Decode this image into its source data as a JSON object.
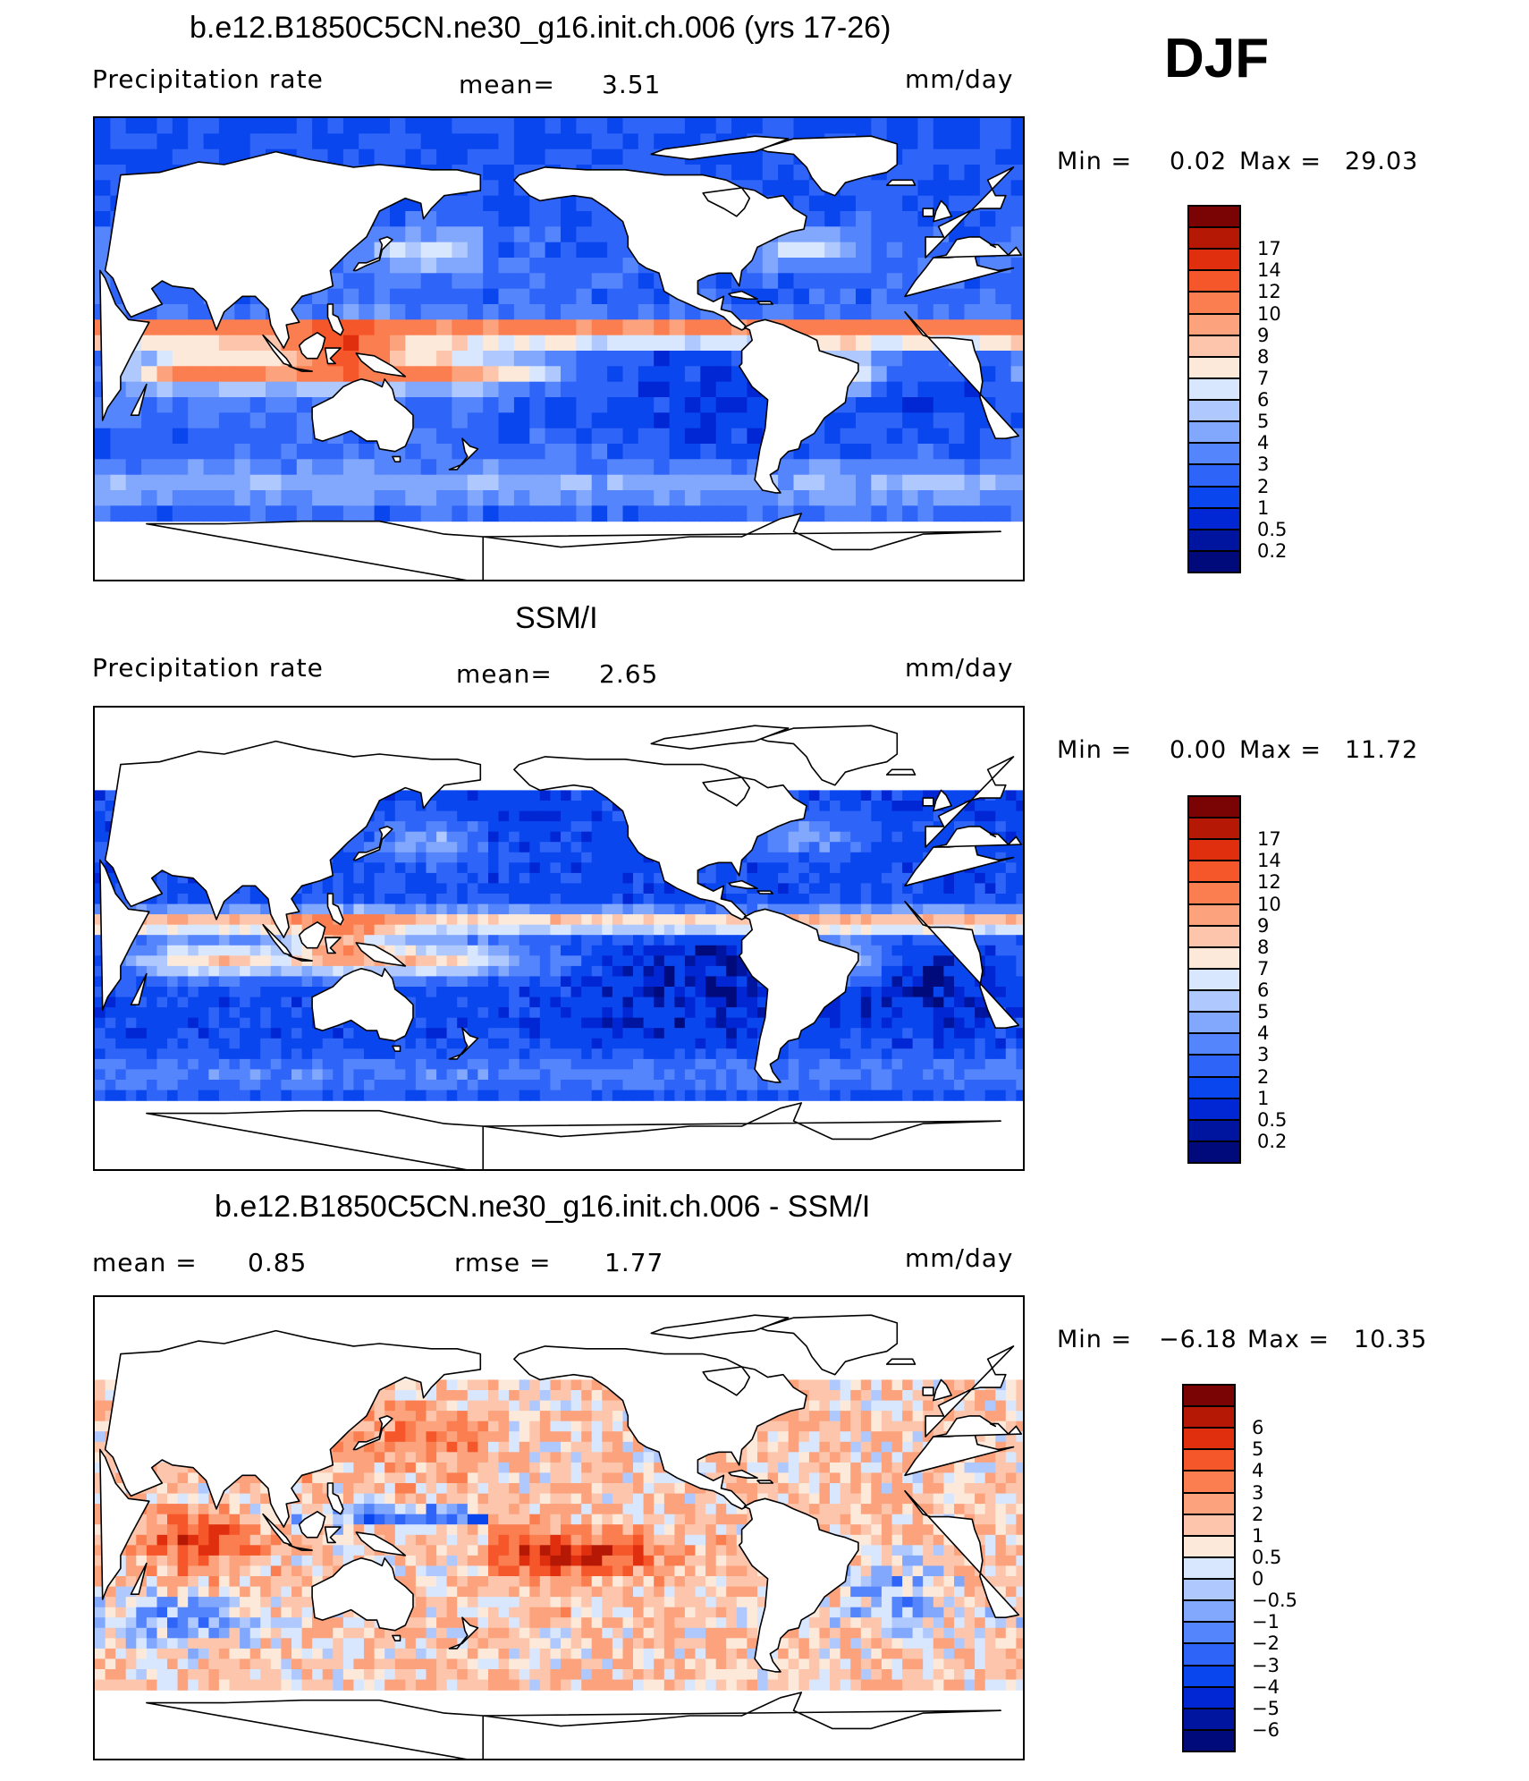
{
  "season_label": "DJF",
  "panels": [
    {
      "id": "model",
      "title": "b.e12.B1850C5CN.ne30_g16.init.ch.006 (yrs 17-26)",
      "left_label": "Precipitation  rate",
      "stat1_label": "mean=",
      "stat1_value": "3.51",
      "units": "mm/day",
      "min_label": "Min  =",
      "min_value": "0.02",
      "max_label": "Max  =",
      "max_value": "29.03",
      "colorbar": {
        "colors": [
          "#000a7a",
          "#00159f",
          "#0126d3",
          "#0a46ee",
          "#2e64f8",
          "#5585fc",
          "#82a8fd",
          "#afc8fe",
          "#d8e6fe",
          "#fde9d9",
          "#fdc6ac",
          "#fca37d",
          "#fb7e50",
          "#f6572a",
          "#e02f0f",
          "#b51906",
          "#7a0403"
        ],
        "labels": [
          "0.2",
          "0.5",
          "1",
          "2",
          "3",
          "4",
          "5",
          "6",
          "7",
          "8",
          "9",
          "10",
          "12",
          "14",
          "17"
        ]
      }
    },
    {
      "id": "obs",
      "title": "SSM/I",
      "left_label": "Precipitation  rate",
      "stat1_label": "mean=",
      "stat1_value": "2.65",
      "units": "mm/day",
      "min_label": "Min  =",
      "min_value": "0.00",
      "max_label": "Max  =",
      "max_value": "11.72",
      "colorbar": {
        "colors": [
          "#000a7a",
          "#00159f",
          "#0126d3",
          "#0a46ee",
          "#2e64f8",
          "#5585fc",
          "#82a8fd",
          "#afc8fe",
          "#d8e6fe",
          "#fde9d9",
          "#fdc6ac",
          "#fca37d",
          "#fb7e50",
          "#f6572a",
          "#e02f0f",
          "#b51906",
          "#7a0403"
        ],
        "labels": [
          "0.2",
          "0.5",
          "1",
          "2",
          "3",
          "4",
          "5",
          "6",
          "7",
          "8",
          "9",
          "10",
          "12",
          "14",
          "17"
        ]
      }
    },
    {
      "id": "diff",
      "title": "b.e12.B1850C5CN.ne30_g16.init.ch.006 - SSM/I",
      "left_label": "mean  =",
      "left_value": "0.85",
      "stat1_label": "rmse  =",
      "stat1_value": "1.77",
      "units": "mm/day",
      "min_label": "Min  =",
      "min_value": "−6.18",
      "max_label": "Max  =",
      "max_value": "10.35",
      "colorbar": {
        "colors": [
          "#000a7a",
          "#00159f",
          "#0126d3",
          "#0a46ee",
          "#2e64f8",
          "#5585fc",
          "#82a8fd",
          "#afc8fe",
          "#d8e6fe",
          "#fde9d9",
          "#fdc6ac",
          "#fca37d",
          "#fb7e50",
          "#f6572a",
          "#e02f0f",
          "#b51906",
          "#7a0403"
        ],
        "labels": [
          "−6",
          "−5",
          "−4",
          "−3",
          "−2",
          "−1",
          "−0.5",
          "0",
          "0.5",
          "1",
          "2",
          "3",
          "4",
          "5",
          "6"
        ]
      }
    }
  ],
  "chart_data": [
    {
      "type": "heatmap",
      "title": "b.e12.B1850C5CN.ne30_g16.init.ch.006 (yrs 17-26)",
      "field": "Precipitation  rate",
      "units": "mm/day",
      "season": "DJF",
      "mean": 3.51,
      "min": 0.02,
      "max": 29.03,
      "color_levels": [
        0.2,
        0.5,
        1,
        2,
        3,
        4,
        5,
        6,
        7,
        8,
        9,
        10,
        12,
        14,
        17
      ]
    },
    {
      "type": "heatmap",
      "title": "SSM/I",
      "field": "Precipitation  rate",
      "units": "mm/day",
      "season": "DJF",
      "mean": 2.65,
      "min": 0.0,
      "max": 11.72,
      "color_levels": [
        0.2,
        0.5,
        1,
        2,
        3,
        4,
        5,
        6,
        7,
        8,
        9,
        10,
        12,
        14,
        17
      ]
    },
    {
      "type": "heatmap",
      "title": "b.e12.B1850C5CN.ne30_g16.init.ch.006 - SSM/I",
      "units": "mm/day",
      "season": "DJF",
      "mean": 0.85,
      "rmse": 1.77,
      "min": -6.18,
      "max": 10.35,
      "color_levels": [
        -6,
        -5,
        -4,
        -3,
        -2,
        -1,
        -0.5,
        0,
        0.5,
        1,
        2,
        3,
        4,
        5,
        6
      ]
    }
  ]
}
